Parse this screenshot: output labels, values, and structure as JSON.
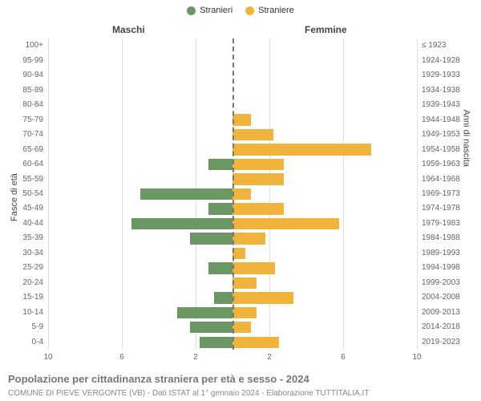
{
  "legend": {
    "items": [
      {
        "label": "Stranieri",
        "color": "#6b9862"
      },
      {
        "label": "Straniere",
        "color": "#f0b43c"
      }
    ]
  },
  "columns": {
    "left": "Maschi",
    "right": "Femmine"
  },
  "axis_titles": {
    "left": "Fasce di età",
    "right": "Anni di nascita"
  },
  "title": "Popolazione per cittadinanza straniera per età e sesso - 2024",
  "subtitle": "COMUNE DI PIEVE VERGONTE (VB) - Dati ISTAT al 1° gennaio 2024 - Elaborazione TUTTITALIA.IT",
  "x": {
    "max": 10,
    "ticks_left": [
      10,
      6,
      2
    ],
    "ticks_right": [
      2,
      6,
      10
    ]
  },
  "style": {
    "bar_color_left": "#6b9862",
    "bar_color_right": "#f0b43c",
    "grid_color": "#e0e0e0",
    "center_line_color": "#777777",
    "background": "#ffffff",
    "label_fontsize": 10,
    "title_fontsize": 13,
    "row_gap_pct": 22
  },
  "rows": [
    {
      "age": "100+",
      "birth": "≤ 1923",
      "m": 0,
      "f": 0
    },
    {
      "age": "95-99",
      "birth": "1924-1928",
      "m": 0,
      "f": 0
    },
    {
      "age": "90-94",
      "birth": "1929-1933",
      "m": 0,
      "f": 0
    },
    {
      "age": "85-89",
      "birth": "1934-1938",
      "m": 0,
      "f": 0
    },
    {
      "age": "80-84",
      "birth": "1939-1943",
      "m": 0,
      "f": 0
    },
    {
      "age": "75-79",
      "birth": "1944-1948",
      "m": 0,
      "f": 1.0
    },
    {
      "age": "70-74",
      "birth": "1949-1953",
      "m": 0,
      "f": 2.2
    },
    {
      "age": "65-69",
      "birth": "1954-1958",
      "m": 0,
      "f": 7.5
    },
    {
      "age": "60-64",
      "birth": "1959-1963",
      "m": 1.3,
      "f": 2.8
    },
    {
      "age": "55-59",
      "birth": "1964-1968",
      "m": 0,
      "f": 2.8
    },
    {
      "age": "50-54",
      "birth": "1969-1973",
      "m": 5.0,
      "f": 1.0
    },
    {
      "age": "45-49",
      "birth": "1974-1978",
      "m": 1.3,
      "f": 2.8
    },
    {
      "age": "40-44",
      "birth": "1979-1983",
      "m": 5.5,
      "f": 5.8
    },
    {
      "age": "35-39",
      "birth": "1984-1988",
      "m": 2.3,
      "f": 1.8
    },
    {
      "age": "30-34",
      "birth": "1989-1993",
      "m": 0,
      "f": 0.7
    },
    {
      "age": "25-29",
      "birth": "1994-1998",
      "m": 1.3,
      "f": 2.3
    },
    {
      "age": "20-24",
      "birth": "1999-2003",
      "m": 0,
      "f": 1.3
    },
    {
      "age": "15-19",
      "birth": "2004-2008",
      "m": 1.0,
      "f": 3.3
    },
    {
      "age": "10-14",
      "birth": "2009-2013",
      "m": 3.0,
      "f": 1.3
    },
    {
      "age": "5-9",
      "birth": "2014-2018",
      "m": 2.3,
      "f": 1.0
    },
    {
      "age": "0-4",
      "birth": "2019-2023",
      "m": 1.8,
      "f": 2.5
    }
  ]
}
